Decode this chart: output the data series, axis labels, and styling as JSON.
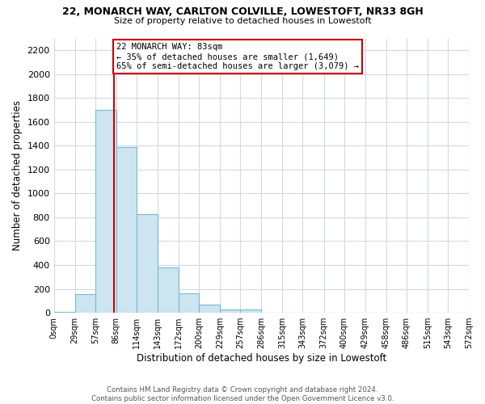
{
  "title_line1": "22, MONARCH WAY, CARLTON COLVILLE, LOWESTOFT, NR33 8GH",
  "title_line2": "Size of property relative to detached houses in Lowestoft",
  "bar_edges": [
    0,
    29,
    57,
    86,
    114,
    143,
    172,
    200,
    229,
    257,
    286,
    315,
    343,
    372,
    400,
    429,
    458,
    486,
    515,
    543,
    572
  ],
  "bar_heights": [
    10,
    155,
    1700,
    1390,
    830,
    380,
    160,
    65,
    30,
    25,
    0,
    0,
    0,
    0,
    0,
    0,
    0,
    0,
    0,
    0
  ],
  "bar_color": "#cce5f0",
  "bar_edgecolor": "#7ab8d4",
  "property_line_x": 83,
  "property_line_color": "#cc0000",
  "annotation_line1": "22 MONARCH WAY: 83sqm",
  "annotation_line2": "← 35% of detached houses are smaller (1,649)",
  "annotation_line3": "65% of semi-detached houses are larger (3,079) →",
  "annotation_box_color": "#ffffff",
  "annotation_box_edgecolor": "#cc0000",
  "xlabel": "Distribution of detached houses by size in Lowestoft",
  "ylabel": "Number of detached properties",
  "ylim": [
    0,
    2300
  ],
  "yticks": [
    0,
    200,
    400,
    600,
    800,
    1000,
    1200,
    1400,
    1600,
    1800,
    2000,
    2200
  ],
  "xlim": [
    0,
    572
  ],
  "xtick_labels": [
    "0sqm",
    "29sqm",
    "57sqm",
    "86sqm",
    "114sqm",
    "143sqm",
    "172sqm",
    "200sqm",
    "229sqm",
    "257sqm",
    "286sqm",
    "315sqm",
    "343sqm",
    "372sqm",
    "400sqm",
    "429sqm",
    "458sqm",
    "486sqm",
    "515sqm",
    "543sqm",
    "572sqm"
  ],
  "footer_text": "Contains HM Land Registry data © Crown copyright and database right 2024.\nContains public sector information licensed under the Open Government Licence v3.0.",
  "bg_color": "#ffffff",
  "grid_color": "#d0d8e8"
}
